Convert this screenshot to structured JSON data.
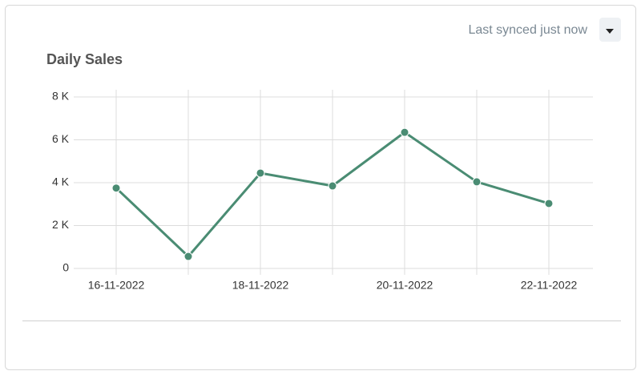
{
  "sync_status": "Last synced just now",
  "chart_data": {
    "type": "line",
    "title": "Daily Sales",
    "categories": [
      "16-11-2022",
      null,
      "18-11-2022",
      null,
      "20-11-2022",
      null,
      "22-11-2022"
    ],
    "series": [
      {
        "name": "Daily Sales",
        "color": "#4a8c73",
        "values": [
          3750,
          560,
          4450,
          3850,
          6350,
          4040,
          3030
        ]
      }
    ],
    "ylim": [
      0,
      8000
    ],
    "yticks": [
      0,
      {
        "value": 2000,
        "label": "2 K"
      },
      {
        "value": 4000,
        "label": "4 K"
      },
      {
        "value": 6000,
        "label": "6 K"
      },
      {
        "value": 8000,
        "label": "8 K"
      }
    ],
    "grid": true
  }
}
